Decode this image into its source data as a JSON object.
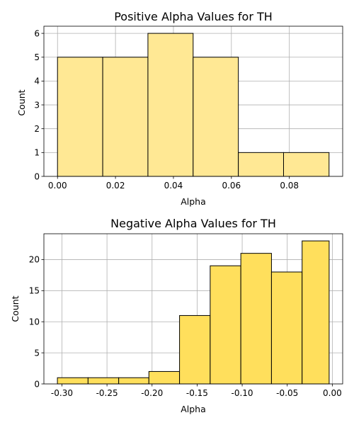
{
  "chart_data": [
    {
      "type": "bar",
      "title": "Positive Alpha Values for TH",
      "xlabel": "Alpha",
      "ylabel": "Count",
      "bin_edges": [
        0.0,
        0.0156,
        0.0312,
        0.0468,
        0.0624,
        0.078,
        0.0937
      ],
      "values": [
        5,
        5,
        6,
        5,
        1,
        1
      ],
      "xlim": [
        -0.0047,
        0.0984
      ],
      "ylim": [
        0,
        6.3
      ],
      "xticks": [
        0.0,
        0.02,
        0.04,
        0.06,
        0.08
      ],
      "xtick_labels": [
        "0.00",
        "0.02",
        "0.04",
        "0.06",
        "0.08"
      ],
      "yticks": [
        0,
        1,
        2,
        3,
        4,
        5,
        6
      ],
      "ytick_labels": [
        "0",
        "1",
        "2",
        "3",
        "4",
        "5",
        "6"
      ],
      "grid": true,
      "bar_color": "#ffe894",
      "edge_color": "#000000"
    },
    {
      "type": "bar",
      "title": "Negative Alpha Values for TH",
      "xlabel": "Alpha",
      "ylabel": "Count",
      "bin_edges": [
        -0.305,
        -0.271,
        -0.237,
        -0.2035,
        -0.1695,
        -0.1355,
        -0.1015,
        -0.0675,
        -0.0335,
        -0.0035
      ],
      "values": [
        1,
        1,
        1,
        2,
        11,
        19,
        21,
        18,
        23
      ],
      "xlim": [
        -0.32,
        0.0115
      ],
      "ylim": [
        0,
        24.15
      ],
      "xticks": [
        -0.3,
        -0.25,
        -0.2,
        -0.15,
        -0.1,
        -0.05,
        0.0
      ],
      "xtick_labels": [
        "-0.30",
        "-0.25",
        "-0.20",
        "-0.15",
        "-0.10",
        "-0.05",
        "0.00"
      ],
      "yticks": [
        0,
        5,
        10,
        15,
        20
      ],
      "ytick_labels": [
        "0",
        "5",
        "10",
        "15",
        "20"
      ],
      "grid": true,
      "bar_color": "#ffdf5c",
      "edge_color": "#000000"
    }
  ]
}
